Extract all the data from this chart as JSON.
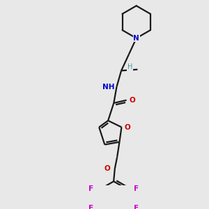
{
  "bg_color": "#e8e8e8",
  "bond_color": "#1a1a1a",
  "N_color": "#0000cc",
  "O_color": "#cc0000",
  "F_color": "#cc00cc",
  "NH_color": "#4a9999",
  "H_color": "#4a9999",
  "lw": 1.6,
  "dbo": 0.035,
  "xlim": [
    0,
    3.0
  ],
  "ylim": [
    0,
    3.2
  ]
}
